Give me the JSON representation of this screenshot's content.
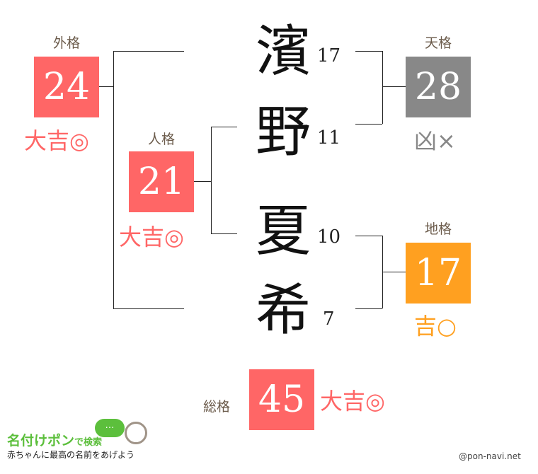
{
  "colors": {
    "daikichi": "#ff6666",
    "kyo": "#888888",
    "kichi": "#ffa020",
    "label": "#6b5b4b"
  },
  "name_chars": [
    {
      "char": "濱",
      "strokes": "17"
    },
    {
      "char": "野",
      "strokes": "11"
    },
    {
      "char": "夏",
      "strokes": "10"
    },
    {
      "char": "希",
      "strokes": "7"
    }
  ],
  "gaikaku": {
    "label": "外格",
    "value": "24",
    "fortune": "大吉◎"
  },
  "jinkaku": {
    "label": "人格",
    "value": "21",
    "fortune": "大吉◎"
  },
  "tenkaku": {
    "label": "天格",
    "value": "28",
    "fortune": "凶×"
  },
  "chikaku": {
    "label": "地格",
    "value": "17",
    "fortune": "吉○"
  },
  "soukaku": {
    "label": "総格",
    "value": "45",
    "fortune": "大吉◎"
  },
  "logo": {
    "title": "名付けポン",
    "suffix": "で検索",
    "tagline": "赤ちゃんに最高の名前をあげよう",
    "bubble": "…"
  },
  "credit": "@pon-navi.net"
}
